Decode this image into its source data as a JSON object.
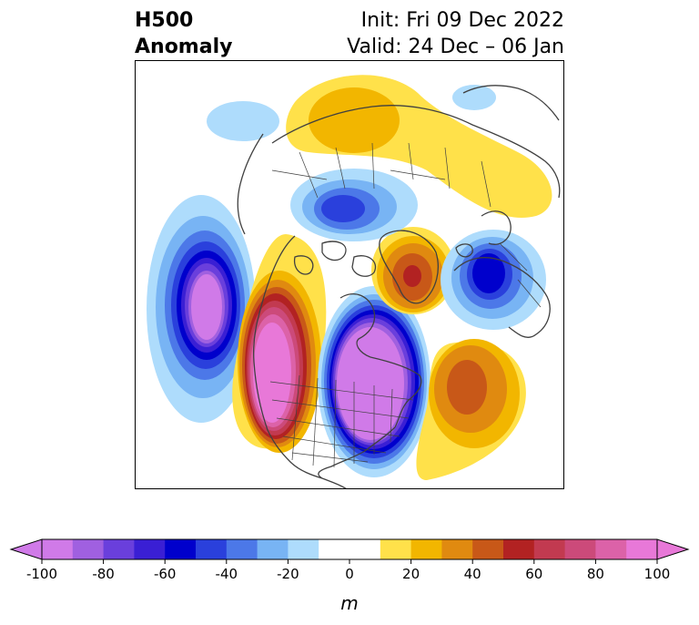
{
  "title": {
    "left_line1": "H500",
    "left_line2": "Anomaly",
    "right_line1": "Init: Fri 09 Dec 2022",
    "right_line2": "Valid: 24 Dec – 06 Jan"
  },
  "colorbar": {
    "units": "m",
    "ticks": [
      "-100",
      "-80",
      "-60",
      "-40",
      "-20",
      "0",
      "20",
      "40",
      "60",
      "80",
      "100"
    ],
    "bins": [
      {
        "range": "-100 to -90",
        "color": "#d07ae8"
      },
      {
        "range": "-90 to -80",
        "color": "#a060e0"
      },
      {
        "range": "-80 to -70",
        "color": "#6a3fdc"
      },
      {
        "range": "-70 to -60",
        "color": "#3a1fd4"
      },
      {
        "range": "-60 to -50",
        "color": "#0000cc"
      },
      {
        "range": "-50 to -40",
        "color": "#2a40dc"
      },
      {
        "range": "-40 to -30",
        "color": "#4c78e8"
      },
      {
        "range": "-30 to -20",
        "color": "#78b4f4"
      },
      {
        "range": "-20 to -10",
        "color": "#aedcfc"
      },
      {
        "range": "-10 to 10",
        "color": "#ffffff"
      },
      {
        "range": "10 to 20",
        "color": "#ffe14a"
      },
      {
        "range": "20 to 30",
        "color": "#f2b600"
      },
      {
        "range": "30 to 40",
        "color": "#e08a10"
      },
      {
        "range": "40 to 50",
        "color": "#c85818"
      },
      {
        "range": "50 to 60",
        "color": "#b22222"
      },
      {
        "range": "60 to 70",
        "color": "#c23a50"
      },
      {
        "range": "70 to 80",
        "color": "#cc4a7a"
      },
      {
        "range": "80 to 90",
        "color": "#dc62a8"
      },
      {
        "range": "90 to 100",
        "color": "#e878d8"
      }
    ],
    "extend_min_color": "#d07ae8",
    "extend_max_color": "#e878d8"
  },
  "anomalies": [
    {
      "id": "north-pacific-low",
      "sign": "negative",
      "peak_m": -100
    },
    {
      "id": "western-north-america-ridge",
      "sign": "positive",
      "peak_m": 100
    },
    {
      "id": "central-north-america-trough",
      "sign": "negative",
      "peak_m": -100
    },
    {
      "id": "north-atlantic-ridge",
      "sign": "positive",
      "peak_m": 50
    },
    {
      "id": "greenland-ridge",
      "sign": "positive",
      "peak_m": 60
    },
    {
      "id": "europe-trough",
      "sign": "negative",
      "peak_m": -60
    },
    {
      "id": "arctic-low",
      "sign": "negative",
      "peak_m": -50
    },
    {
      "id": "siberia-ridge",
      "sign": "positive",
      "peak_m": 30
    },
    {
      "id": "east-asia-trough",
      "sign": "negative",
      "peak_m": -30
    }
  ]
}
